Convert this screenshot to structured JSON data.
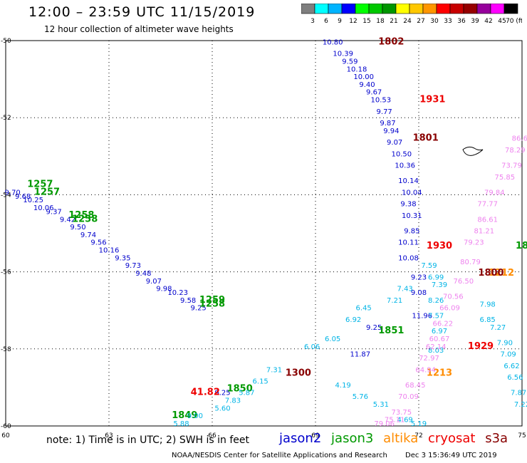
{
  "header": {
    "title": "12:00 – 23:59 UTC 11/15/2019",
    "subtitle": "12 hour collection of altimeter wave heights"
  },
  "colorbar": {
    "ticks": [
      "3",
      "6",
      "9",
      "12",
      "15",
      "18",
      "21",
      "24",
      "27",
      "30",
      "33",
      "36",
      "39",
      "42",
      "45",
      "70 (ft)"
    ],
    "colors": [
      "#7f7f7f",
      "#00ffff",
      "#00b4ff",
      "#0000ff",
      "#00ff00",
      "#00c800",
      "#009600",
      "#ffff00",
      "#ffc800",
      "#ff9600",
      "#ff0000",
      "#c80000",
      "#960000",
      "#96009c",
      "#ff00ff",
      "#000000"
    ]
  },
  "chart_data": {
    "type": "scatter",
    "xlim": [
      60,
      75
    ],
    "ylim": [
      -60,
      -50
    ],
    "x_ticks": [
      "60",
      "63",
      "66",
      "69",
      "72",
      "75"
    ],
    "y_ticks": [
      "-50",
      "-52",
      "-54",
      "-56",
      "-58",
      "-60"
    ],
    "grid": true,
    "series": [
      {
        "name": "jason2",
        "color": "#0000cc",
        "points": [
          {
            "x": 60.2,
            "y": -54.0,
            "v": "9.70"
          },
          {
            "x": 60.5,
            "y": -54.1,
            "v": "9.68"
          },
          {
            "x": 60.8,
            "y": -54.2,
            "v": "10.25"
          },
          {
            "x": 61.1,
            "y": -54.4,
            "v": "10.06"
          },
          {
            "x": 61.4,
            "y": -54.5,
            "v": "9.37"
          },
          {
            "x": 61.8,
            "y": -54.7,
            "v": "9.42"
          },
          {
            "x": 62.1,
            "y": -54.9,
            "v": "9.50"
          },
          {
            "x": 62.4,
            "y": -55.1,
            "v": "9.74"
          },
          {
            "x": 62.7,
            "y": -55.3,
            "v": "9.56"
          },
          {
            "x": 63.0,
            "y": -55.5,
            "v": "10.16"
          },
          {
            "x": 63.4,
            "y": -55.7,
            "v": "9.35"
          },
          {
            "x": 63.7,
            "y": -55.9,
            "v": "9.73"
          },
          {
            "x": 64.0,
            "y": -56.1,
            "v": "9.48"
          },
          {
            "x": 64.3,
            "y": -56.3,
            "v": "9.07"
          },
          {
            "x": 64.6,
            "y": -56.5,
            "v": "9.98"
          },
          {
            "x": 65.0,
            "y": -56.6,
            "v": "10.23"
          },
          {
            "x": 65.3,
            "y": -56.8,
            "v": "9.58"
          },
          {
            "x": 65.6,
            "y": -57.0,
            "v": "9.25"
          },
          {
            "x": 69.5,
            "y": -50.1,
            "v": "10.80"
          },
          {
            "x": 69.8,
            "y": -50.4,
            "v": "10.39"
          },
          {
            "x": 70.0,
            "y": -50.6,
            "v": "9.59"
          },
          {
            "x": 70.2,
            "y": -50.8,
            "v": "10.18"
          },
          {
            "x": 70.4,
            "y": -51.0,
            "v": "10.00"
          },
          {
            "x": 70.5,
            "y": -51.2,
            "v": "9.40"
          },
          {
            "x": 70.7,
            "y": -51.4,
            "v": "9.67"
          },
          {
            "x": 70.9,
            "y": -51.6,
            "v": "10.53"
          },
          {
            "x": 71.0,
            "y": -51.9,
            "v": "9.77"
          },
          {
            "x": 71.1,
            "y": -52.2,
            "v": "9.87"
          },
          {
            "x": 71.2,
            "y": -52.4,
            "v": "9.94"
          },
          {
            "x": 71.3,
            "y": -52.7,
            "v": "9.07"
          },
          {
            "x": 71.5,
            "y": -53.0,
            "v": "10.50"
          },
          {
            "x": 71.6,
            "y": -53.3,
            "v": "10.36"
          },
          {
            "x": 71.7,
            "y": -53.7,
            "v": "10.14"
          },
          {
            "x": 71.8,
            "y": -54.0,
            "v": "10.04"
          },
          {
            "x": 71.7,
            "y": -54.3,
            "v": "9.38"
          },
          {
            "x": 71.8,
            "y": -54.6,
            "v": "10.31"
          },
          {
            "x": 71.8,
            "y": -55.0,
            "v": "9.85"
          },
          {
            "x": 71.7,
            "y": -55.3,
            "v": "10.11"
          },
          {
            "x": 71.7,
            "y": -55.7,
            "v": "10.08"
          },
          {
            "x": 72.0,
            "y": -56.2,
            "v": "9.23"
          },
          {
            "x": 72.0,
            "y": -56.6,
            "v": "9.08"
          },
          {
            "x": 72.1,
            "y": -57.2,
            "v": "11.96"
          },
          {
            "x": 70.7,
            "y": -57.5,
            "v": "9.25"
          },
          {
            "x": 70.3,
            "y": -58.2,
            "v": "11.87"
          },
          {
            "x": 66.3,
            "y": -59.2,
            "v": "9.25"
          }
        ]
      },
      {
        "name": "jason3",
        "color": "#009900",
        "points": [
          {
            "x": 61.0,
            "y": -53.8,
            "v": "1257"
          },
          {
            "x": 61.2,
            "y": -54.0,
            "v": "1257"
          },
          {
            "x": 62.2,
            "y": -54.6,
            "v": "1258"
          },
          {
            "x": 62.3,
            "y": -54.7,
            "v": "1258"
          },
          {
            "x": 66.0,
            "y": -56.8,
            "v": "1259"
          },
          {
            "x": 66.0,
            "y": -56.9,
            "v": "1258"
          },
          {
            "x": 71.2,
            "y": -57.6,
            "v": "1851"
          },
          {
            "x": 66.8,
            "y": -59.1,
            "v": "1850"
          },
          {
            "x": 65.2,
            "y": -59.8,
            "v": "1849"
          },
          {
            "x": 75.0,
            "y": -55.4,
            "v": "18"
          }
        ]
      },
      {
        "name": "altika",
        "color": "#ff8c00",
        "points": [
          {
            "x": 72.6,
            "y": -58.7,
            "v": "1213"
          },
          {
            "x": 74.4,
            "y": -56.1,
            "v": "1212"
          }
        ]
      },
      {
        "name": "cryosat",
        "color": "#ee0000",
        "points": [
          {
            "x": 72.4,
            "y": -51.6,
            "v": "1931"
          },
          {
            "x": 72.6,
            "y": -55.4,
            "v": "1930"
          },
          {
            "x": 73.8,
            "y": -58.0,
            "v": "1929"
          },
          {
            "x": 65.8,
            "y": -59.2,
            "v": "41.82"
          }
        ]
      },
      {
        "name": "s3a",
        "color": "#880000",
        "points": [
          {
            "x": 71.2,
            "y": -50.1,
            "v": "1802"
          },
          {
            "x": 72.2,
            "y": -52.6,
            "v": "1801"
          },
          {
            "x": 74.1,
            "y": -56.1,
            "v": "1800"
          },
          {
            "x": 68.5,
            "y": -58.7,
            "v": "1300"
          }
        ]
      },
      {
        "name": "swh_cyan",
        "color": "#00b4e6",
        "points": [
          {
            "x": 72.3,
            "y": -55.9,
            "v": "7.59"
          },
          {
            "x": 72.5,
            "y": -56.2,
            "v": "6.99"
          },
          {
            "x": 72.6,
            "y": -56.4,
            "v": "7.39"
          },
          {
            "x": 72.5,
            "y": -56.8,
            "v": "8.26"
          },
          {
            "x": 72.5,
            "y": -57.2,
            "v": "7.57"
          },
          {
            "x": 72.6,
            "y": -57.6,
            "v": "6.97"
          },
          {
            "x": 72.5,
            "y": -58.1,
            "v": "8.03"
          },
          {
            "x": 74.0,
            "y": -56.9,
            "v": "7.98"
          },
          {
            "x": 74.0,
            "y": -57.3,
            "v": "6.85"
          },
          {
            "x": 74.3,
            "y": -57.5,
            "v": "7.27"
          },
          {
            "x": 74.5,
            "y": -57.9,
            "v": "7.90"
          },
          {
            "x": 74.6,
            "y": -58.2,
            "v": "7.09"
          },
          {
            "x": 74.7,
            "y": -58.5,
            "v": "6.62"
          },
          {
            "x": 74.8,
            "y": -58.8,
            "v": "6.56"
          },
          {
            "x": 74.9,
            "y": -59.2,
            "v": "7.87"
          },
          {
            "x": 75.0,
            "y": -59.5,
            "v": "7.22"
          },
          {
            "x": 68.9,
            "y": -58.0,
            "v": "6.06"
          },
          {
            "x": 69.5,
            "y": -57.8,
            "v": "6.05"
          },
          {
            "x": 70.1,
            "y": -57.3,
            "v": "6.92"
          },
          {
            "x": 70.4,
            "y": -57.0,
            "v": "6.45"
          },
          {
            "x": 71.3,
            "y": -56.8,
            "v": "7.21"
          },
          {
            "x": 71.6,
            "y": -56.5,
            "v": "7.43"
          },
          {
            "x": 67.8,
            "y": -58.6,
            "v": "7.31"
          },
          {
            "x": 67.4,
            "y": -58.9,
            "v": "6.15"
          },
          {
            "x": 67.0,
            "y": -59.2,
            "v": "5.87"
          },
          {
            "x": 66.6,
            "y": -59.4,
            "v": "7.83"
          },
          {
            "x": 66.3,
            "y": -59.6,
            "v": "5.60"
          },
          {
            "x": 65.5,
            "y": -59.8,
            "v": "9.00"
          },
          {
            "x": 65.1,
            "y": -60.0,
            "v": "5.88"
          },
          {
            "x": 69.8,
            "y": -59.0,
            "v": "4.19"
          },
          {
            "x": 70.3,
            "y": -59.3,
            "v": "5.76"
          },
          {
            "x": 70.9,
            "y": -59.5,
            "v": "5.31"
          },
          {
            "x": 71.6,
            "y": -59.9,
            "v": "4.69"
          },
          {
            "x": 72.0,
            "y": -60.0,
            "v": "5.19"
          }
        ]
      },
      {
        "name": "swh_pink",
        "color": "#ee82ee",
        "points": [
          {
            "x": 75.0,
            "y": -52.6,
            "v": "86.61"
          },
          {
            "x": 74.8,
            "y": -52.9,
            "v": "78.29"
          },
          {
            "x": 74.7,
            "y": -53.3,
            "v": "73.79"
          },
          {
            "x": 74.5,
            "y": -53.6,
            "v": "75.85"
          },
          {
            "x": 74.2,
            "y": -54.0,
            "v": "79.84"
          },
          {
            "x": 74.0,
            "y": -54.3,
            "v": "77.77"
          },
          {
            "x": 74.0,
            "y": -54.7,
            "v": "86.61"
          },
          {
            "x": 73.9,
            "y": -55.0,
            "v": "81.21"
          },
          {
            "x": 73.6,
            "y": -55.3,
            "v": "79.23"
          },
          {
            "x": 73.5,
            "y": -55.8,
            "v": "80.79"
          },
          {
            "x": 73.3,
            "y": -56.3,
            "v": "76.50"
          },
          {
            "x": 73.0,
            "y": -56.7,
            "v": "70.56"
          },
          {
            "x": 72.9,
            "y": -57.0,
            "v": "66.09"
          },
          {
            "x": 72.7,
            "y": -57.4,
            "v": "66.22"
          },
          {
            "x": 72.6,
            "y": -57.8,
            "v": "60.67"
          },
          {
            "x": 72.5,
            "y": -58.0,
            "v": "62.14"
          },
          {
            "x": 72.3,
            "y": -58.3,
            "v": "72.97"
          },
          {
            "x": 72.2,
            "y": -58.6,
            "v": "64.94"
          },
          {
            "x": 71.9,
            "y": -59.0,
            "v": "68.45"
          },
          {
            "x": 71.7,
            "y": -59.3,
            "v": "70.09"
          },
          {
            "x": 71.5,
            "y": -59.7,
            "v": "73.75"
          },
          {
            "x": 71.3,
            "y": -59.9,
            "v": "75.11"
          },
          {
            "x": 71.0,
            "y": -60.0,
            "v": "79.06"
          }
        ]
      }
    ]
  },
  "note": "note: 1) Time is in UTC; 2) SWH is in feet",
  "legend": [
    {
      "label": "jason2",
      "color": "#0000cc"
    },
    {
      "label": "jason3",
      "color": "#009900"
    },
    {
      "label": "altika",
      "color": "#ff8c00"
    },
    {
      "label": "cryosat",
      "color": "#ee0000"
    },
    {
      "label": "s3a",
      "color": "#880000"
    }
  ],
  "footer": {
    "org": "NOAA/NESDIS Center for Satellite Applications and Research",
    "timestamp": "Dec  3 15:36:49 UTC 2019"
  }
}
